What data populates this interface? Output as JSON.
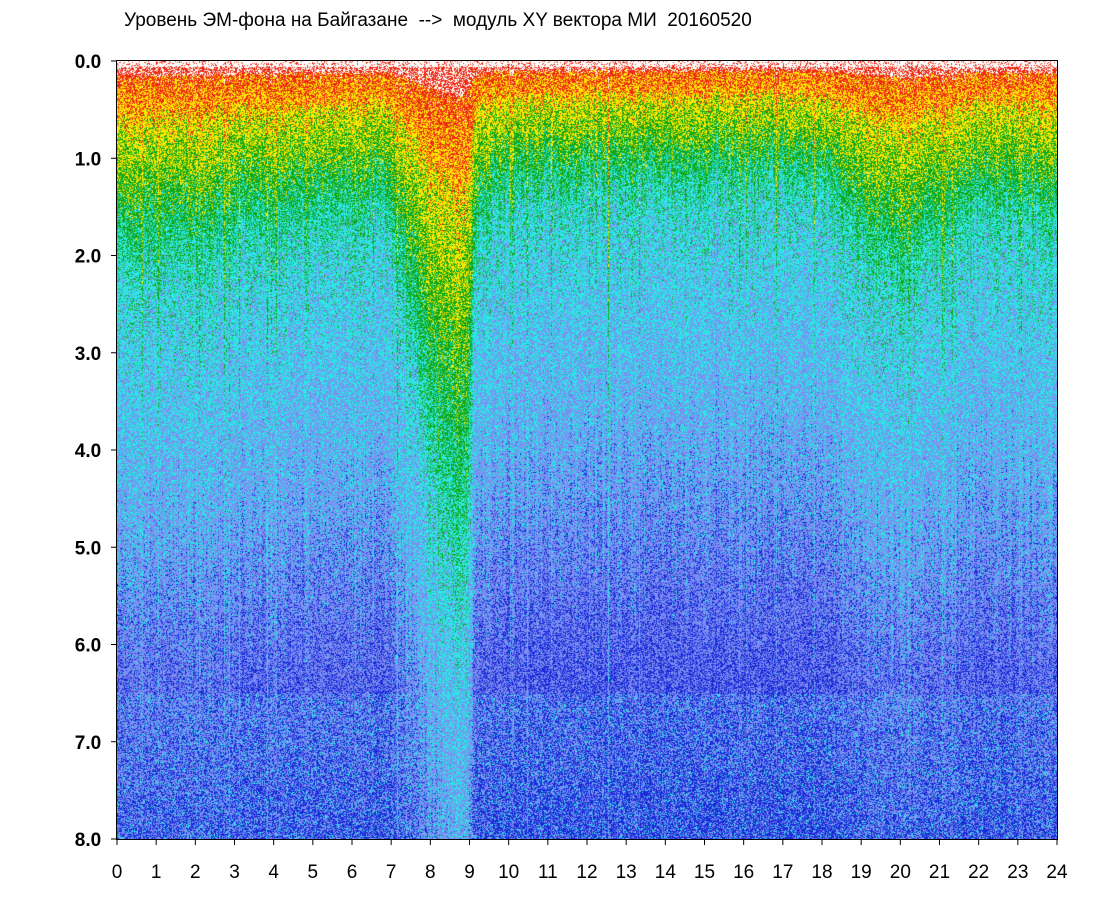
{
  "chart_data": {
    "type": "heatmap",
    "title": "Уровень ЭМ-фона на Байгазане  -->  модуль XY вектора МИ  20160520",
    "xlabel": "",
    "ylabel": "",
    "xlim": [
      0,
      24
    ],
    "ylim": [
      0.0,
      8.0
    ],
    "y_inverted": true,
    "x_ticks": [
      "0",
      "1",
      "2",
      "3",
      "4",
      "5",
      "6",
      "7",
      "8",
      "9",
      "10",
      "11",
      "12",
      "13",
      "14",
      "15",
      "16",
      "17",
      "18",
      "19",
      "20",
      "21",
      "22",
      "23",
      "24"
    ],
    "y_ticks": [
      "0.0",
      "1.0",
      "2.0",
      "3.0",
      "4.0",
      "5.0",
      "6.0",
      "7.0",
      "8.0"
    ],
    "colormap": [
      "#ffffff",
      "#ee2a14",
      "#ffe800",
      "#10a81a",
      "#2ee6e6",
      "#7c8cf0",
      "#1a2bd8"
    ],
    "high_level_depth_by_hour": [
      {
        "hour": 0,
        "depth": 1.8
      },
      {
        "hour": 1,
        "depth": 1.9
      },
      {
        "hour": 2,
        "depth": 1.8
      },
      {
        "hour": 3,
        "depth": 1.6
      },
      {
        "hour": 4,
        "depth": 1.7
      },
      {
        "hour": 5,
        "depth": 1.5
      },
      {
        "hour": 6,
        "depth": 1.4
      },
      {
        "hour": 7,
        "depth": 1.5
      },
      {
        "hour": 8,
        "depth": 3.5
      },
      {
        "hour": 8.8,
        "depth": 4.7
      },
      {
        "hour": 9.2,
        "depth": 1.5
      },
      {
        "hour": 10,
        "depth": 1.3
      },
      {
        "hour": 12,
        "depth": 1.2
      },
      {
        "hour": 14,
        "depth": 1.2
      },
      {
        "hour": 16,
        "depth": 1.1
      },
      {
        "hour": 18,
        "depth": 1.2
      },
      {
        "hour": 20,
        "depth": 2.1
      },
      {
        "hour": 21,
        "depth": 1.6
      },
      {
        "hour": 22,
        "depth": 1.4
      },
      {
        "hour": 24,
        "depth": 1.5
      }
    ]
  }
}
